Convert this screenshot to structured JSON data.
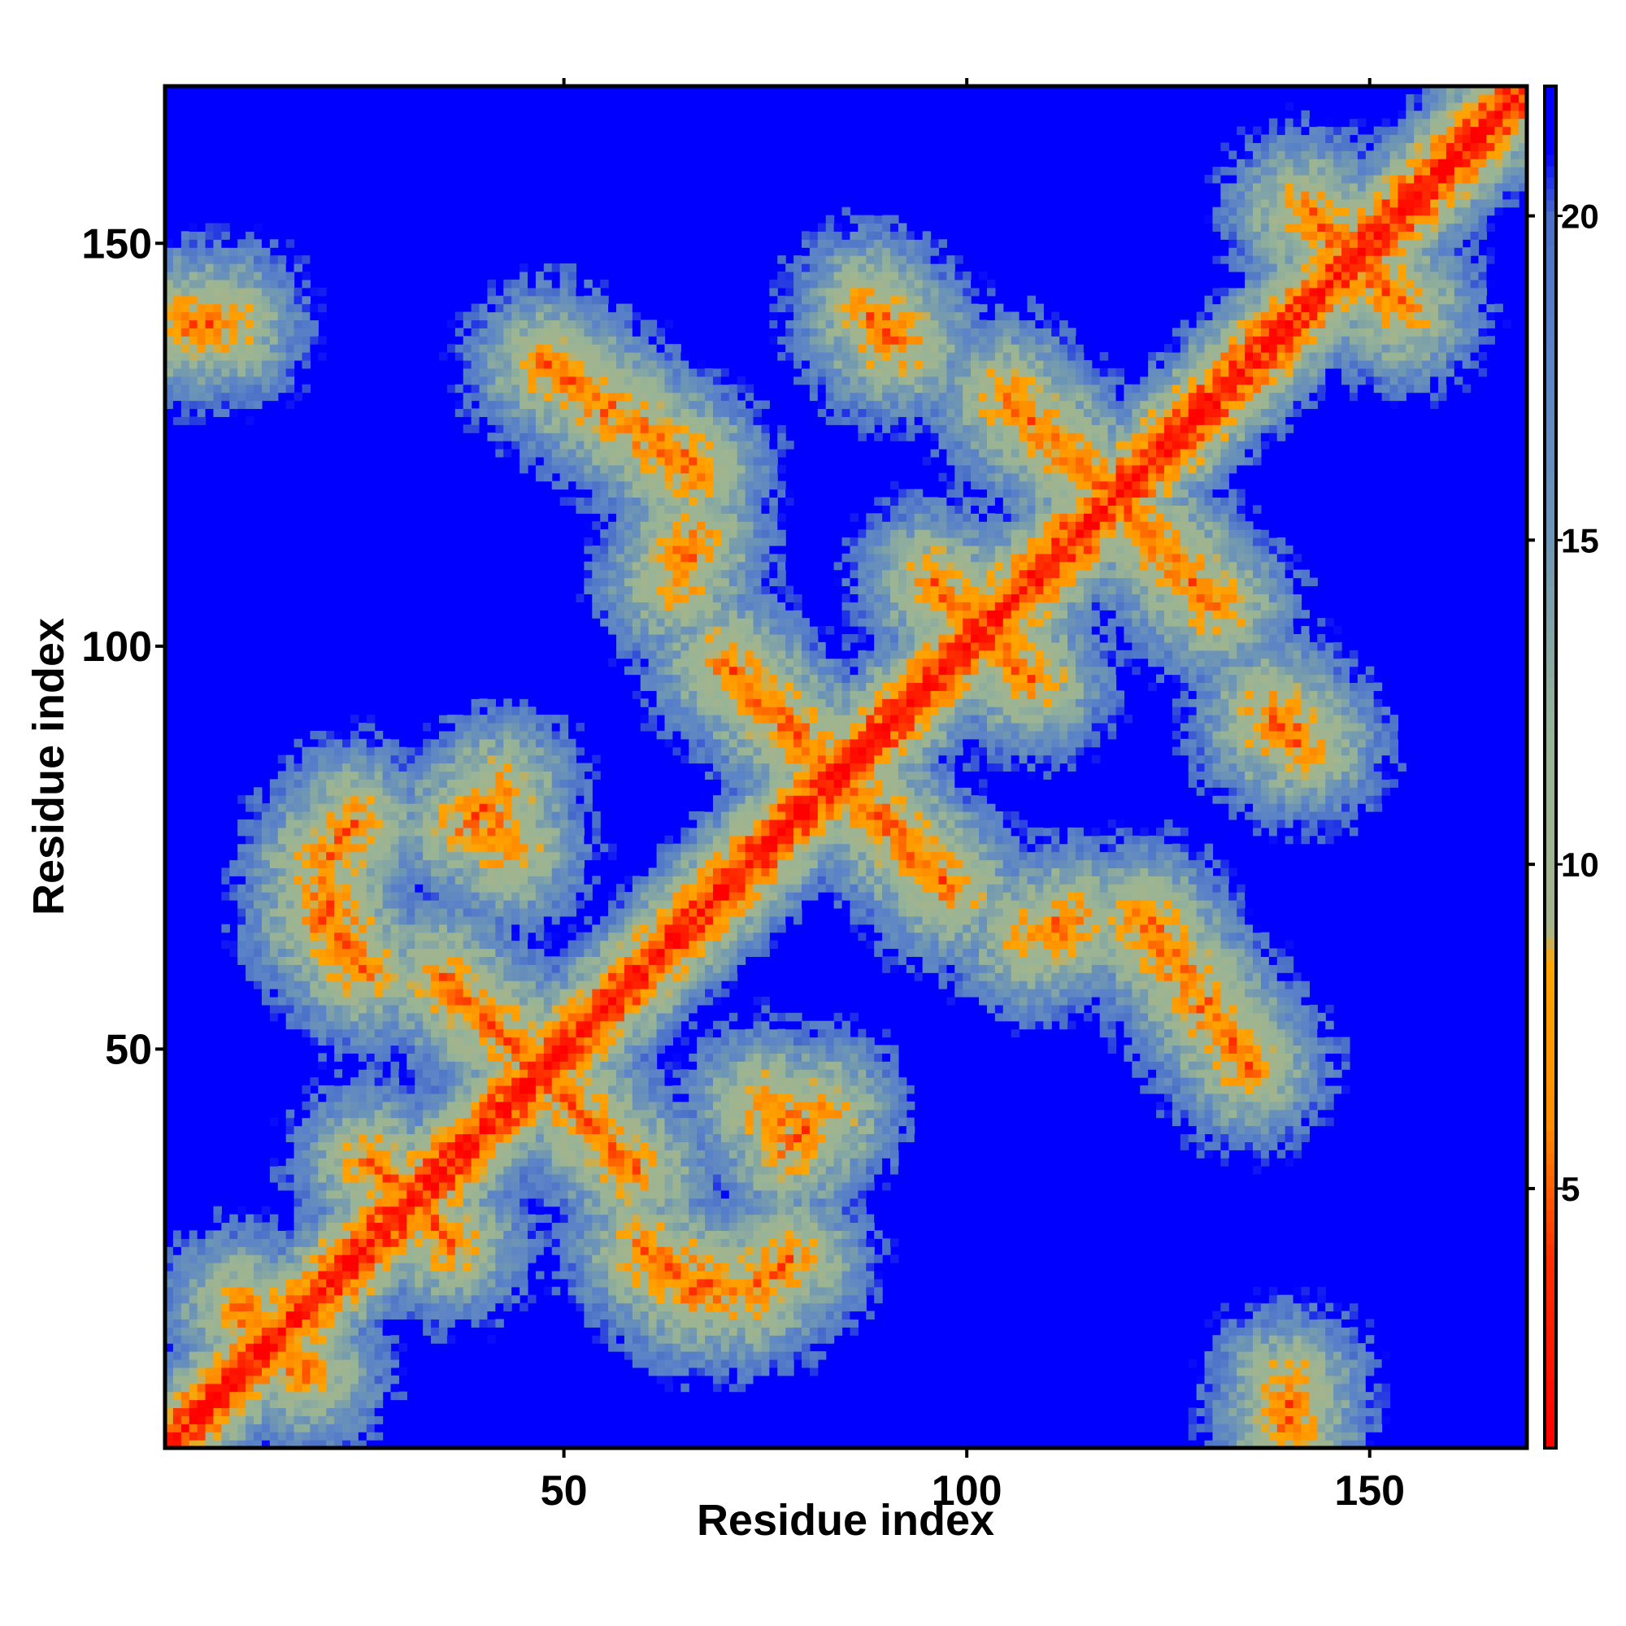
{
  "chart_data": {
    "type": "heatmap",
    "description_of_values": "",
    "xlabel": "Residue index",
    "ylabel": "Residue index",
    "xlim": [
      1,
      169
    ],
    "ylim": [
      1,
      169
    ],
    "x_ticks": [
      50,
      100,
      150
    ],
    "y_ticks": [
      50,
      100,
      150
    ],
    "x_tick_labels": [
      "50",
      "100",
      "150"
    ],
    "y_tick_labels": [
      "50",
      "100",
      "150"
    ],
    "n_residues": 169,
    "colorbar": {
      "range": [
        1,
        22
      ],
      "ticks": [
        5,
        10,
        15,
        20
      ],
      "tick_labels": [
        "5",
        "10",
        "15",
        "20"
      ],
      "stops": [
        {
          "value": 1,
          "color": "#ff0000"
        },
        {
          "value": 4,
          "color": "#ff3000"
        },
        {
          "value": 6,
          "color": "#ff8c00"
        },
        {
          "value": 8.5,
          "color": "#ffa500"
        },
        {
          "value": 9,
          "color": "#a4b48c"
        },
        {
          "value": 12,
          "color": "#98b496"
        },
        {
          "value": 15,
          "color": "#6e96b4"
        },
        {
          "value": 18,
          "color": "#5a82c8"
        },
        {
          "value": 20,
          "color": "#4a70c8"
        },
        {
          "value": 21,
          "color": "#0000ff"
        }
      ],
      "background_color": "#0000ff"
    },
    "features": [
      {
        "kind": "diagonal",
        "from": [
          1,
          1
        ],
        "to": [
          169,
          169
        ]
      },
      {
        "kind": "antiparallel",
        "center": [
          84,
          84
        ],
        "from": [
          70,
          98
        ],
        "to": [
          98,
          70
        ]
      },
      {
        "kind": "antiparallel",
        "center": [
          47,
          47
        ],
        "from": [
          35,
          59
        ],
        "to": [
          59,
          35
        ]
      },
      {
        "kind": "antiparallel",
        "center": [
          118,
          118
        ],
        "from": [
          105,
          131
        ],
        "to": [
          131,
          105
        ]
      },
      {
        "kind": "antiparallel",
        "center": [
          102,
          102
        ],
        "from": [
          96,
          108
        ],
        "to": [
          108,
          96
        ]
      },
      {
        "kind": "antiparallel",
        "center": [
          148,
          148
        ],
        "from": [
          142,
          154
        ],
        "to": [
          154,
          142
        ]
      },
      {
        "kind": "contact",
        "from": [
          48,
          135
        ],
        "to": [
          66,
          122
        ]
      },
      {
        "kind": "contact",
        "from": [
          122,
          66
        ],
        "to": [
          135,
          48
        ]
      },
      {
        "kind": "contact",
        "from": [
          88,
          142
        ],
        "to": [
          92,
          138
        ]
      },
      {
        "kind": "contact",
        "from": [
          20,
          73
        ],
        "to": [
          24,
          78
        ]
      },
      {
        "kind": "contact",
        "from": [
          20,
          66
        ],
        "to": [
          25,
          60
        ]
      },
      {
        "kind": "contact",
        "from": [
          60,
          25
        ],
        "to": [
          70,
          20
        ]
      },
      {
        "kind": "contact",
        "from": [
          38,
          78
        ],
        "to": [
          42,
          82
        ]
      },
      {
        "kind": "contact",
        "from": [
          138,
          90
        ],
        "to": [
          142,
          88
        ]
      },
      {
        "kind": "contact",
        "from": [
          26,
          36
        ],
        "to": [
          34,
          28
        ]
      },
      {
        "kind": "contact",
        "from": [
          10,
          18
        ],
        "to": [
          16,
          12
        ]
      },
      {
        "kind": "contact",
        "from": [
          3,
          140
        ],
        "to": [
          8,
          140
        ]
      },
      {
        "kind": "contact",
        "from": [
          75,
          43
        ],
        "to": [
          80,
          40
        ]
      },
      {
        "kind": "contact",
        "from": [
          108,
          64
        ],
        "to": [
          113,
          66
        ]
      }
    ]
  }
}
